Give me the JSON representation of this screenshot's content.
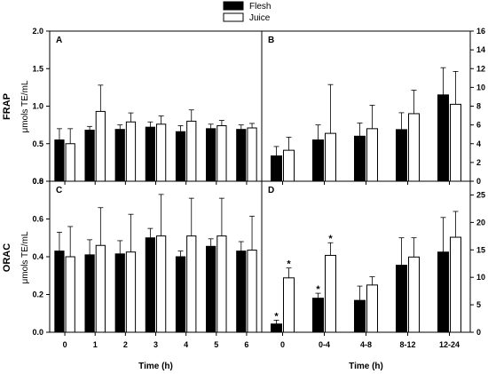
{
  "colors": {
    "flesh": "#000000",
    "juice": "#ffffff",
    "axis": "#000000"
  },
  "legend": {
    "flesh": "Flesh",
    "juice": "Juice"
  },
  "y_labels": {
    "top_main": "FRAP",
    "top_sub": "μmols TE/mL",
    "bottom_main": "ORAC",
    "bottom_sub": "μmols TE/mL"
  },
  "chart_data": [
    {
      "id": "A",
      "type": "bar",
      "panel_label": "A",
      "categories": [
        "0",
        "1",
        "2",
        "3",
        "4",
        "5",
        "6"
      ],
      "series": [
        {
          "name": "Flesh",
          "values": [
            0.55,
            0.68,
            0.69,
            0.72,
            0.66,
            0.7,
            0.69
          ],
          "errors": [
            0.15,
            0.05,
            0.06,
            0.07,
            0.08,
            0.06,
            0.06
          ]
        },
        {
          "name": "Juice",
          "values": [
            0.5,
            0.93,
            0.79,
            0.76,
            0.8,
            0.74,
            0.71
          ],
          "errors": [
            0.2,
            0.35,
            0.12,
            0.11,
            0.15,
            0.07,
            0.06
          ]
        }
      ],
      "ylim": [
        0,
        2.0
      ],
      "yticks": [
        "0.0",
        "0.5",
        "1.0",
        "1.5",
        "2.0"
      ],
      "axis_side": "left",
      "xlabel": ""
    },
    {
      "id": "B",
      "type": "bar",
      "panel_label": "B",
      "categories": [
        "0",
        "0-4",
        "4-8",
        "8-12",
        "12-24"
      ],
      "series": [
        {
          "name": "Flesh",
          "values": [
            2.7,
            4.4,
            4.8,
            5.5,
            9.2
          ],
          "errors": [
            1.0,
            1.6,
            1.4,
            1.8,
            2.9
          ]
        },
        {
          "name": "Juice",
          "values": [
            3.3,
            5.1,
            5.6,
            7.2,
            8.2
          ],
          "errors": [
            1.4,
            5.2,
            2.5,
            2.5,
            3.5
          ]
        }
      ],
      "ylim": [
        0,
        16
      ],
      "yticks": [
        "0",
        "2",
        "4",
        "6",
        "8",
        "10",
        "12",
        "14",
        "16"
      ],
      "axis_side": "right",
      "xlabel": ""
    },
    {
      "id": "C",
      "type": "bar",
      "panel_label": "C",
      "categories": [
        "0",
        "1",
        "2",
        "3",
        "4",
        "5",
        "6"
      ],
      "series": [
        {
          "name": "Flesh",
          "values": [
            0.43,
            0.41,
            0.415,
            0.5,
            0.4,
            0.455,
            0.43
          ],
          "errors": [
            0.1,
            0.08,
            0.07,
            0.05,
            0.03,
            0.04,
            0.05
          ]
        },
        {
          "name": "Juice",
          "values": [
            0.4,
            0.46,
            0.425,
            0.51,
            0.51,
            0.51,
            0.435
          ],
          "errors": [
            0.16,
            0.2,
            0.2,
            0.22,
            0.2,
            0.2,
            0.18
          ]
        }
      ],
      "ylim": [
        0,
        0.8
      ],
      "yticks": [
        "0.0",
        "0.2",
        "0.4",
        "0.6",
        "0.8"
      ],
      "axis_side": "left",
      "xlabel": "Time (h)"
    },
    {
      "id": "D",
      "type": "bar",
      "panel_label": "D",
      "categories": [
        "0",
        "0-4",
        "4-8",
        "8-12",
        "12-24"
      ],
      "series": [
        {
          "name": "Flesh",
          "values": [
            1.5,
            6.2,
            5.8,
            12.2,
            14.6
          ],
          "errors": [
            0.7,
            0.9,
            2.6,
            5.0,
            6.3
          ],
          "stars": [
            true,
            true,
            false,
            false,
            false
          ]
        },
        {
          "name": "Juice",
          "values": [
            9.9,
            14.0,
            8.6,
            13.7,
            17.3
          ],
          "errors": [
            1.8,
            2.3,
            1.5,
            3.5,
            4.7
          ],
          "stars": [
            true,
            true,
            false,
            false,
            false
          ]
        }
      ],
      "ylim": [
        0,
        27.5
      ],
      "yticks": [
        "0",
        "5",
        "10",
        "15",
        "20",
        "25"
      ],
      "axis_side": "right",
      "xlabel": "Time (h)"
    }
  ]
}
